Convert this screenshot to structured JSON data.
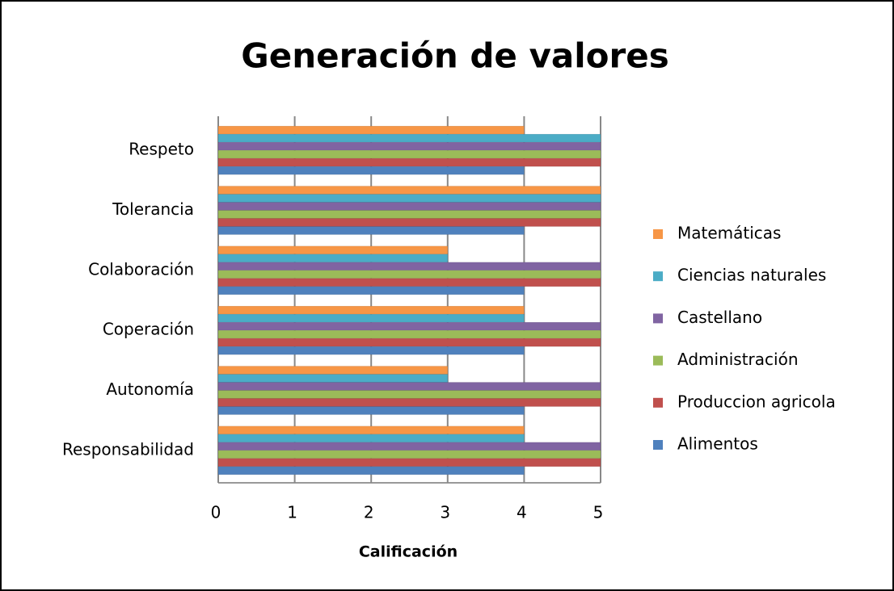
{
  "chart_data": {
    "type": "bar",
    "orientation": "horizontal",
    "title": "Generación de valores",
    "x_label": "Calificación",
    "categories": [
      "Respeto",
      "Tolerancia",
      "Colaboración",
      "Coperación",
      "Autonomía",
      "Responsabilidad"
    ],
    "series": [
      {
        "name": "Matemáticas",
        "color": "#f79646",
        "values": [
          4,
          5,
          3,
          4,
          3,
          4
        ]
      },
      {
        "name": "Ciencias naturales",
        "color": "#4bacc6",
        "values": [
          5,
          5,
          3,
          4,
          3,
          4
        ]
      },
      {
        "name": "Castellano",
        "color": "#8064a2",
        "values": [
          5,
          5,
          5,
          5,
          5,
          5
        ]
      },
      {
        "name": "Administración",
        "color": "#9bbb59",
        "values": [
          5,
          5,
          5,
          5,
          5,
          5
        ]
      },
      {
        "name": "Produccion agricola",
        "color": "#c0504d",
        "values": [
          5,
          5,
          5,
          5,
          5,
          5
        ]
      },
      {
        "name": "Alimentos",
        "color": "#4f81bd",
        "values": [
          4,
          4,
          4,
          4,
          4,
          4
        ]
      }
    ],
    "xlim": [
      0,
      5
    ],
    "xticks": [
      0,
      1,
      2,
      3,
      4,
      5
    ],
    "grid": true,
    "legend": "right"
  }
}
